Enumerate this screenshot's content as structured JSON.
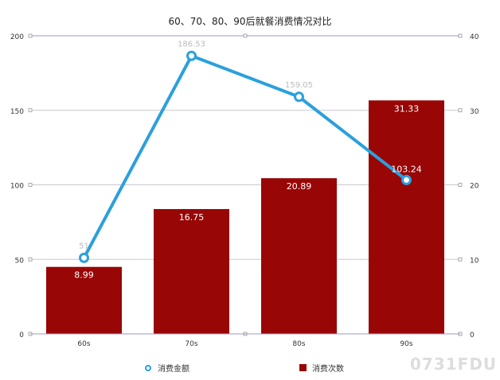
{
  "chart_data": {
    "type": "bar+line",
    "title": "60、70、80、90后就餐消费情况对比",
    "categories": [
      "60s",
      "70s",
      "80s",
      "90s"
    ],
    "series": [
      {
        "name": "消费次数",
        "type": "bar",
        "axis": "right",
        "values": [
          8.99,
          16.75,
          20.89,
          31.33
        ],
        "labels": [
          "8.99",
          "16.75",
          "20.89",
          "31.33"
        ],
        "color": "#990606"
      },
      {
        "name": "消费金额",
        "type": "line",
        "axis": "left",
        "values": [
          51,
          186.53,
          159.05,
          103.24
        ],
        "labels": [
          "51",
          "186.53",
          "159.05",
          "103.24"
        ],
        "color": "#2ba0dd"
      }
    ],
    "left_axis": {
      "ylim": [
        0,
        200
      ],
      "ticks": [
        "0",
        "50",
        "100",
        "150",
        "200"
      ]
    },
    "right_axis": {
      "ylim": [
        0,
        40
      ],
      "ticks": [
        "0",
        "10",
        "20",
        "30",
        "40"
      ]
    },
    "grid": true,
    "legend": "bottom"
  },
  "watermark": "0731FDU"
}
